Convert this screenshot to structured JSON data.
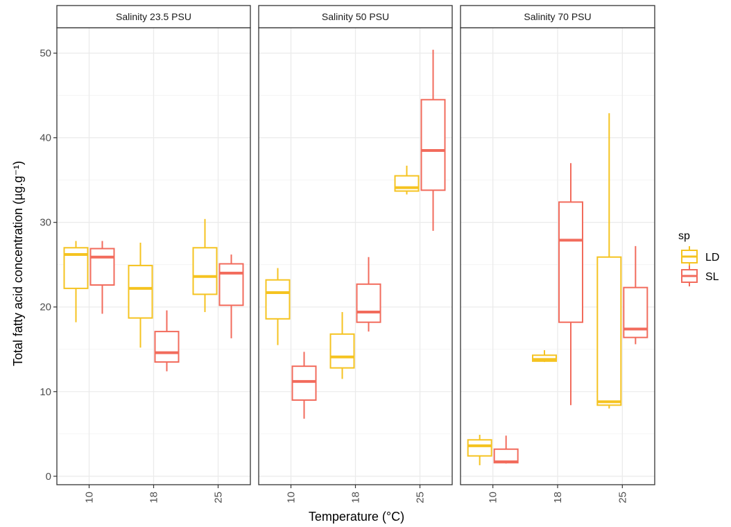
{
  "chart_data": {
    "type": "boxplot",
    "ylabel": "Total fatty acid concentration (µg.g⁻¹)",
    "xlabel": "Temperature (°C)",
    "ylim": [
      -1,
      53
    ],
    "yticks": [
      0,
      10,
      20,
      30,
      40,
      50
    ],
    "categories": [
      "10",
      "18",
      "25"
    ],
    "legend": {
      "title": "sp",
      "position": "right",
      "items": [
        {
          "name": "LD",
          "color": "#f5c320"
        },
        {
          "name": "SL",
          "color": "#f26b5c"
        }
      ]
    },
    "grid": true,
    "panels": [
      {
        "strip": "Salinity 23.5 PSU",
        "boxes": [
          {
            "category": "10",
            "series": "LD",
            "min": 18.2,
            "q1": 22.2,
            "median": 26.2,
            "q3": 27.0,
            "max": 27.8
          },
          {
            "category": "10",
            "series": "SL",
            "min": 19.2,
            "q1": 22.6,
            "median": 25.9,
            "q3": 26.9,
            "max": 27.8
          },
          {
            "category": "18",
            "series": "LD",
            "min": 15.2,
            "q1": 18.7,
            "median": 22.2,
            "q3": 24.9,
            "max": 27.6
          },
          {
            "category": "18",
            "series": "SL",
            "min": 12.4,
            "q1": 13.5,
            "median": 14.6,
            "q3": 17.1,
            "max": 19.6
          },
          {
            "category": "25",
            "series": "LD",
            "min": 19.4,
            "q1": 21.5,
            "median": 23.6,
            "q3": 27.0,
            "max": 30.4
          },
          {
            "category": "25",
            "series": "SL",
            "min": 16.3,
            "q1": 20.2,
            "median": 24.0,
            "q3": 25.1,
            "max": 26.2
          }
        ]
      },
      {
        "strip": "Salinity 50 PSU",
        "boxes": [
          {
            "category": "10",
            "series": "LD",
            "min": 15.5,
            "q1": 18.6,
            "median": 21.7,
            "q3": 23.2,
            "max": 24.6
          },
          {
            "category": "10",
            "series": "SL",
            "min": 6.8,
            "q1": 9.0,
            "median": 11.2,
            "q3": 13.0,
            "max": 14.7
          },
          {
            "category": "18",
            "series": "LD",
            "min": 11.5,
            "q1": 12.8,
            "median": 14.1,
            "q3": 16.8,
            "max": 19.4
          },
          {
            "category": "18",
            "series": "SL",
            "min": 17.1,
            "q1": 18.2,
            "median": 19.4,
            "q3": 22.7,
            "max": 25.9
          },
          {
            "category": "25",
            "series": "LD",
            "min": 33.3,
            "q1": 33.7,
            "median": 34.1,
            "q3": 35.5,
            "max": 36.7
          },
          {
            "category": "25",
            "series": "SL",
            "min": 29.0,
            "q1": 33.8,
            "median": 38.5,
            "q3": 44.5,
            "max": 50.4
          }
        ]
      },
      {
        "strip": "Salinity 70 PSU",
        "boxes": [
          {
            "category": "10",
            "series": "LD",
            "min": 1.3,
            "q1": 2.4,
            "median": 3.6,
            "q3": 4.3,
            "max": 4.9
          },
          {
            "category": "10",
            "series": "SL",
            "min": 1.5,
            "q1": 1.6,
            "median": 1.7,
            "q3": 3.2,
            "max": 4.8
          },
          {
            "category": "18",
            "series": "LD",
            "min": 13.5,
            "q1": 13.6,
            "median": 13.8,
            "q3": 14.3,
            "max": 14.9
          },
          {
            "category": "18",
            "series": "SL",
            "min": 8.4,
            "q1": 18.2,
            "median": 27.9,
            "q3": 32.4,
            "max": 37.0
          },
          {
            "category": "25",
            "series": "LD",
            "min": 8.0,
            "q1": 8.4,
            "median": 8.8,
            "q3": 25.9,
            "max": 42.9
          },
          {
            "category": "25",
            "series": "SL",
            "min": 15.6,
            "q1": 16.4,
            "median": 17.4,
            "q3": 22.3,
            "max": 27.2
          }
        ]
      }
    ]
  }
}
